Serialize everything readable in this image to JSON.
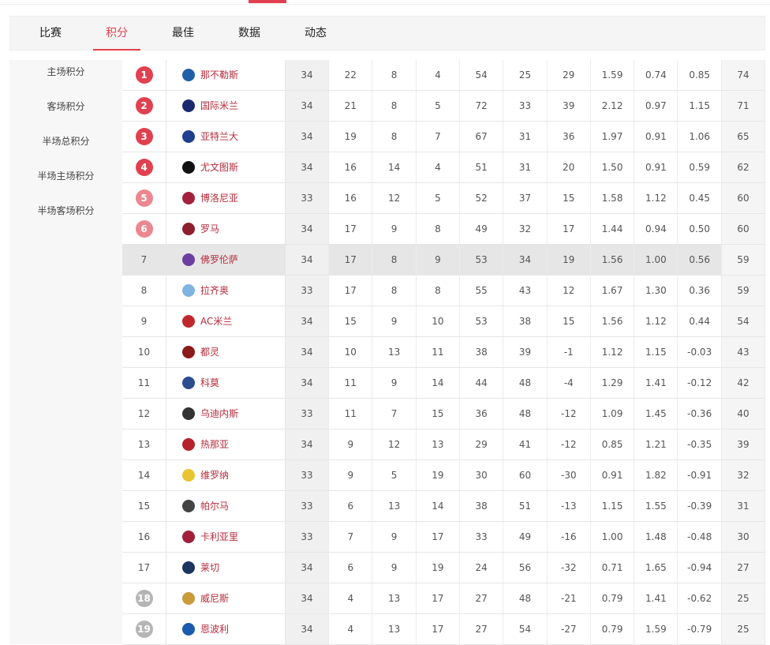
{
  "tabs": [
    "比赛",
    "积分",
    "最佳",
    "数据",
    "动态"
  ],
  "sidebar": [
    "主场积分",
    "客场积分",
    "半场总积分",
    "半场主场积分",
    "半场客场积分"
  ],
  "table": {
    "rows": [
      [
        "1",
        "那不勒斯",
        "34",
        "22",
        "8",
        "4",
        "54",
        "25",
        "29",
        "1.59",
        "0.74",
        "0.85",
        "74"
      ],
      [
        "2",
        "国际米兰",
        "34",
        "21",
        "8",
        "5",
        "72",
        "33",
        "39",
        "2.12",
        "0.97",
        "1.15",
        "71"
      ],
      [
        "3",
        "亚特兰大",
        "34",
        "19",
        "8",
        "7",
        "67",
        "31",
        "36",
        "1.97",
        "0.91",
        "1.06",
        "65"
      ],
      [
        "4",
        "尤文图斯",
        "34",
        "16",
        "14",
        "4",
        "51",
        "31",
        "20",
        "1.50",
        "0.91",
        "0.59",
        "62"
      ],
      [
        "5",
        "博洛尼亚",
        "33",
        "16",
        "12",
        "5",
        "52",
        "37",
        "15",
        "1.58",
        "1.12",
        "0.45",
        "60"
      ],
      [
        "6",
        "罗马",
        "34",
        "17",
        "9",
        "8",
        "49",
        "32",
        "17",
        "1.44",
        "0.94",
        "0.50",
        "60"
      ],
      [
        "7",
        "佛罗伦萨",
        "34",
        "17",
        "8",
        "9",
        "53",
        "34",
        "19",
        "1.56",
        "1.00",
        "0.56",
        "59"
      ],
      [
        "8",
        "拉齐奥",
        "33",
        "17",
        "8",
        "8",
        "55",
        "43",
        "12",
        "1.67",
        "1.30",
        "0.36",
        "59"
      ],
      [
        "9",
        "AC米兰",
        "34",
        "15",
        "9",
        "10",
        "53",
        "38",
        "15",
        "1.56",
        "1.12",
        "0.44",
        "54"
      ],
      [
        "10",
        "都灵",
        "34",
        "10",
        "13",
        "11",
        "38",
        "39",
        "-1",
        "1.12",
        "1.15",
        "-0.03",
        "43"
      ],
      [
        "11",
        "科莫",
        "34",
        "11",
        "9",
        "14",
        "44",
        "48",
        "-4",
        "1.29",
        "1.41",
        "-0.12",
        "42"
      ],
      [
        "12",
        "乌迪内斯",
        "33",
        "11",
        "7",
        "15",
        "36",
        "48",
        "-12",
        "1.09",
        "1.45",
        "-0.36",
        "40"
      ],
      [
        "13",
        "热那亚",
        "34",
        "9",
        "12",
        "13",
        "29",
        "41",
        "-12",
        "0.85",
        "1.21",
        "-0.35",
        "39"
      ],
      [
        "14",
        "维罗纳",
        "33",
        "9",
        "5",
        "19",
        "30",
        "60",
        "-30",
        "0.91",
        "1.82",
        "-0.91",
        "32"
      ],
      [
        "15",
        "帕尔马",
        "33",
        "6",
        "13",
        "14",
        "38",
        "51",
        "-13",
        "1.15",
        "1.55",
        "-0.39",
        "31"
      ],
      [
        "16",
        "卡利亚里",
        "33",
        "7",
        "9",
        "17",
        "33",
        "49",
        "-16",
        "1.00",
        "1.48",
        "-0.48",
        "30"
      ],
      [
        "17",
        "莱切",
        "34",
        "6",
        "9",
        "19",
        "24",
        "56",
        "-32",
        "0.71",
        "1.65",
        "-0.94",
        "27"
      ],
      [
        "18",
        "威尼斯",
        "34",
        "4",
        "13",
        "17",
        "27",
        "48",
        "-21",
        "0.79",
        "1.41",
        "-0.62",
        "25"
      ],
      [
        "19",
        "恩波利",
        "34",
        "4",
        "13",
        "17",
        "27",
        "54",
        "-27",
        "0.79",
        "1.59",
        "-0.79",
        "25"
      ]
    ]
  }
}
